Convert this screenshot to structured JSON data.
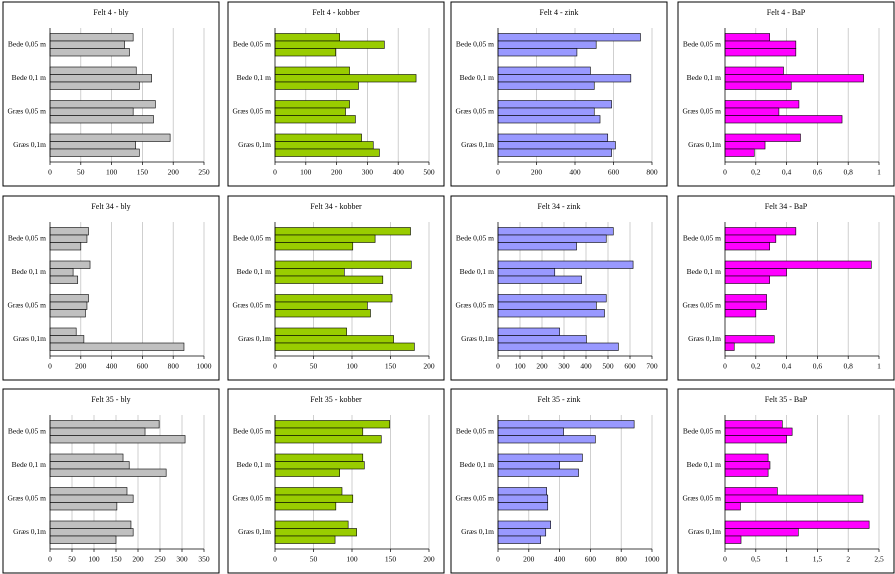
{
  "chart_data": [
    {
      "type": "bar",
      "title": "Felt 4 - bly",
      "color": "#c0c0c0",
      "categories": [
        "Bede 0,05 m",
        "Bede 0,1 m",
        "Græs 0,05 m",
        "Græs 0,1m"
      ],
      "series": [
        {
          "values": [
            135,
            140,
            171,
            195
          ]
        },
        {
          "values": [
            121,
            165,
            135,
            139
          ]
        },
        {
          "values": [
            129,
            145,
            168,
            145
          ]
        }
      ],
      "xlim": [
        0,
        250
      ],
      "xticks": [
        0,
        50,
        100,
        150,
        200,
        250
      ],
      "grid": true
    },
    {
      "type": "bar",
      "title": "Felt 4 - kobber",
      "color": "#99cc00",
      "categories": [
        "Bede 0,05 m",
        "Bede 0,1 m",
        "Græs 0,05 m",
        "Græs 0,1m"
      ],
      "series": [
        {
          "values": [
            210,
            242,
            242,
            281
          ]
        },
        {
          "values": [
            355,
            458,
            229,
            319
          ]
        },
        {
          "values": [
            197,
            271,
            261,
            339
          ]
        }
      ],
      "xlim": [
        0,
        500
      ],
      "xticks": [
        0,
        100,
        200,
        300,
        400,
        500
      ],
      "grid": true
    },
    {
      "type": "bar",
      "title": "Felt 4 - zink",
      "color": "#9999ff",
      "categories": [
        "Bede 0,05 m",
        "Bede 0,1 m",
        "Græs 0,05 m",
        "Græs 0,1m"
      ],
      "series": [
        {
          "values": [
            740,
            480,
            590,
            570
          ]
        },
        {
          "values": [
            510,
            690,
            500,
            610
          ]
        },
        {
          "values": [
            410,
            500,
            530,
            590
          ]
        }
      ],
      "xlim": [
        0,
        800
      ],
      "xticks": [
        0,
        200,
        400,
        600,
        800
      ],
      "grid": true
    },
    {
      "type": "bar",
      "title": "Felt 4 - BaP",
      "color": "#ff00ff",
      "categories": [
        "Bede 0,05 m",
        "Bede 0,1 m",
        "Græs 0,05 m",
        "Græs 0,1m"
      ],
      "series": [
        {
          "values": [
            0.29,
            0.38,
            0.48,
            0.49
          ]
        },
        {
          "values": [
            0.46,
            0.9,
            0.35,
            0.26
          ]
        },
        {
          "values": [
            0.46,
            0.43,
            0.76,
            0.19
          ]
        }
      ],
      "xlim": [
        0,
        1
      ],
      "xticks": [
        0,
        {
          "value": 0.2,
          "label": "0,2"
        },
        {
          "value": 0.4,
          "label": "0,4"
        },
        {
          "value": 0.6,
          "label": "0,6"
        },
        {
          "value": 0.8,
          "label": "0,8"
        },
        1
      ],
      "grid": true
    },
    {
      "type": "bar",
      "title": "Felt 34 - bly",
      "color": "#c0c0c0",
      "categories": [
        "Bede 0,05 m",
        "Bede 0,1 m",
        "Græs 0,05 m",
        "Græs 0,1m"
      ],
      "series": [
        {
          "values": [
            250,
            260,
            250,
            170
          ]
        },
        {
          "values": [
            240,
            150,
            240,
            220
          ]
        },
        {
          "values": [
            200,
            180,
            230,
            870
          ]
        }
      ],
      "xlim": [
        0,
        1000
      ],
      "xticks": [
        0,
        200,
        400,
        600,
        800,
        1000
      ],
      "grid": true
    },
    {
      "type": "bar",
      "title": "Felt 34 - kobber",
      "color": "#99cc00",
      "categories": [
        "Bede 0,05 m",
        "Bede 0,1 m",
        "Græs 0,05 m",
        "Græs 0,1m"
      ],
      "series": [
        {
          "values": [
            176,
            177,
            152,
            93
          ]
        },
        {
          "values": [
            130,
            90,
            120,
            154
          ]
        },
        {
          "values": [
            101,
            140,
            124,
            181
          ]
        }
      ],
      "xlim": [
        0,
        200
      ],
      "xticks": [
        0,
        50,
        100,
        150,
        200
      ],
      "grid": true
    },
    {
      "type": "bar",
      "title": "Felt 34 - zink",
      "color": "#9999ff",
      "categories": [
        "Bede 0,05 m",
        "Bede 0,1 m",
        "Græs 0,05 m",
        "Græs 0,1m"
      ],
      "series": [
        {
          "values": [
            524,
            614,
            492,
            280
          ]
        },
        {
          "values": [
            492,
            258,
            447,
            402
          ]
        },
        {
          "values": [
            357,
            380,
            484,
            547
          ]
        }
      ],
      "xlim": [
        0,
        700
      ],
      "xticks": [
        0,
        100,
        200,
        300,
        400,
        500,
        600,
        700
      ],
      "grid": true
    },
    {
      "type": "bar",
      "title": "Felt 34 - BaP",
      "color": "#ff00ff",
      "categories": [
        "Bede 0,05 m",
        "Bede 0,1 m",
        "Græs 0,05 m",
        "Græs 0,1m"
      ],
      "series": [
        {
          "values": [
            0.46,
            0.95,
            0.27,
            0
          ]
        },
        {
          "values": [
            0.33,
            0.4,
            0.27,
            0.32
          ]
        },
        {
          "values": [
            0.29,
            0.29,
            0.2,
            0.06
          ]
        }
      ],
      "xlim": [
        0,
        1
      ],
      "xticks": [
        0,
        {
          "value": 0.2,
          "label": "0,2"
        },
        {
          "value": 0.4,
          "label": "0,4"
        },
        {
          "value": 0.6,
          "label": "0,6"
        },
        {
          "value": 0.8,
          "label": "0,8"
        },
        1
      ],
      "grid": true
    },
    {
      "type": "bar",
      "title": "Felt 35 - bly",
      "color": "#c0c0c0",
      "categories": [
        "Bede 0,05 m",
        "Bede 0,1 m",
        "Græs 0,05 m",
        "Græs 0,1m"
      ],
      "series": [
        {
          "values": [
            248,
            166,
            175,
            184
          ]
        },
        {
          "values": [
            216,
            180,
            189,
            189
          ]
        },
        {
          "values": [
            307,
            264,
            152,
            150
          ]
        }
      ],
      "xlim": [
        0,
        350
      ],
      "xticks": [
        0,
        50,
        100,
        150,
        200,
        250,
        300,
        350
      ],
      "grid": true
    },
    {
      "type": "bar",
      "title": "Felt 35 - kobber",
      "color": "#99cc00",
      "categories": [
        "Bede 0,05 m",
        "Bede 0,1 m",
        "Græs 0,05 m",
        "Græs 0,1m"
      ],
      "series": [
        {
          "values": [
            149,
            114,
            87,
            95
          ]
        },
        {
          "values": [
            114,
            116,
            101,
            106
          ]
        },
        {
          "values": [
            138,
            84,
            79,
            78
          ]
        }
      ],
      "xlim": [
        0,
        200
      ],
      "xticks": [
        0,
        50,
        100,
        150,
        200
      ],
      "grid": true
    },
    {
      "type": "bar",
      "title": "Felt 35 - zink",
      "color": "#9999ff",
      "categories": [
        "Bede 0,05 m",
        "Bede 0,1 m",
        "Græs 0,05 m",
        "Græs 0,1m"
      ],
      "series": [
        {
          "values": [
            884,
            548,
            316,
            342
          ]
        },
        {
          "values": [
            426,
            400,
            323,
            310
          ]
        },
        {
          "values": [
            632,
            523,
            323,
            277
          ]
        }
      ],
      "xlim": [
        0,
        1000
      ],
      "xticks": [
        0,
        200,
        400,
        600,
        800,
        1000
      ],
      "grid": true
    },
    {
      "type": "bar",
      "title": "Felt 35 - BaP",
      "color": "#ff00ff",
      "categories": [
        "Bede 0,05 m",
        "Bede 0,1 m",
        "Græs 0,05 m",
        "Græs 0,1m"
      ],
      "series": [
        {
          "values": [
            0.93,
            0.7,
            0.85,
            2.34
          ]
        },
        {
          "values": [
            1.09,
            0.73,
            2.24,
            1.19
          ]
        },
        {
          "values": [
            1.0,
            0.7,
            0.25,
            0.26
          ]
        }
      ],
      "xlim": [
        0,
        2.5
      ],
      "xticks": [
        0,
        {
          "value": 0.5,
          "label": "0,5"
        },
        1,
        {
          "value": 1.5,
          "label": "1,5"
        },
        2,
        {
          "value": 2.5,
          "label": "2,5"
        }
      ],
      "grid": true
    }
  ]
}
